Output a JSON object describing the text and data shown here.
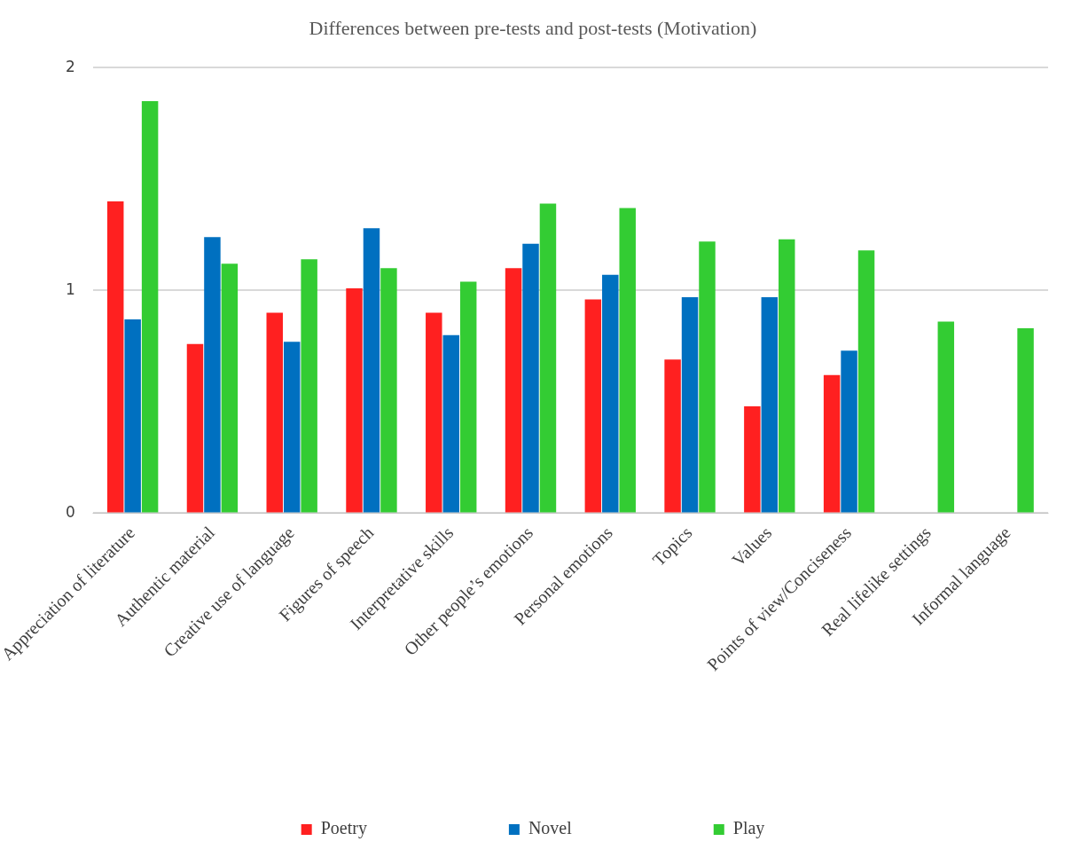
{
  "chart_data": {
    "type": "bar",
    "title": "Differences between pre-tests and post-tests (Motivation)",
    "categories": [
      "Appreciation of literature",
      "Authentic material",
      "Creative use of language",
      "Figures of speech",
      "Interpretative skills",
      "Other people’s emotions",
      "Personal emotions",
      "Topics",
      "Values",
      "Points of view/Conciseness",
      "Real lifelike settings",
      "Informal language"
    ],
    "series": [
      {
        "name": "Poetry",
        "color": "#ff2020",
        "values": [
          1.4,
          0.76,
          0.9,
          1.01,
          0.9,
          1.1,
          0.96,
          0.69,
          0.48,
          0.62,
          null,
          null
        ]
      },
      {
        "name": "Novel",
        "color": "#0070c0",
        "values": [
          0.87,
          1.24,
          0.77,
          1.28,
          0.8,
          1.21,
          1.07,
          0.97,
          0.97,
          0.73,
          null,
          null
        ]
      },
      {
        "name": "Play",
        "color": "#33cc33",
        "values": [
          1.85,
          1.12,
          1.14,
          1.1,
          1.04,
          1.39,
          1.37,
          1.22,
          1.23,
          1.18,
          0.86,
          0.83
        ]
      }
    ],
    "ylim": [
      0,
      2
    ],
    "yticks": [
      0,
      1,
      2
    ],
    "grid": "y",
    "legend": "bottom"
  }
}
